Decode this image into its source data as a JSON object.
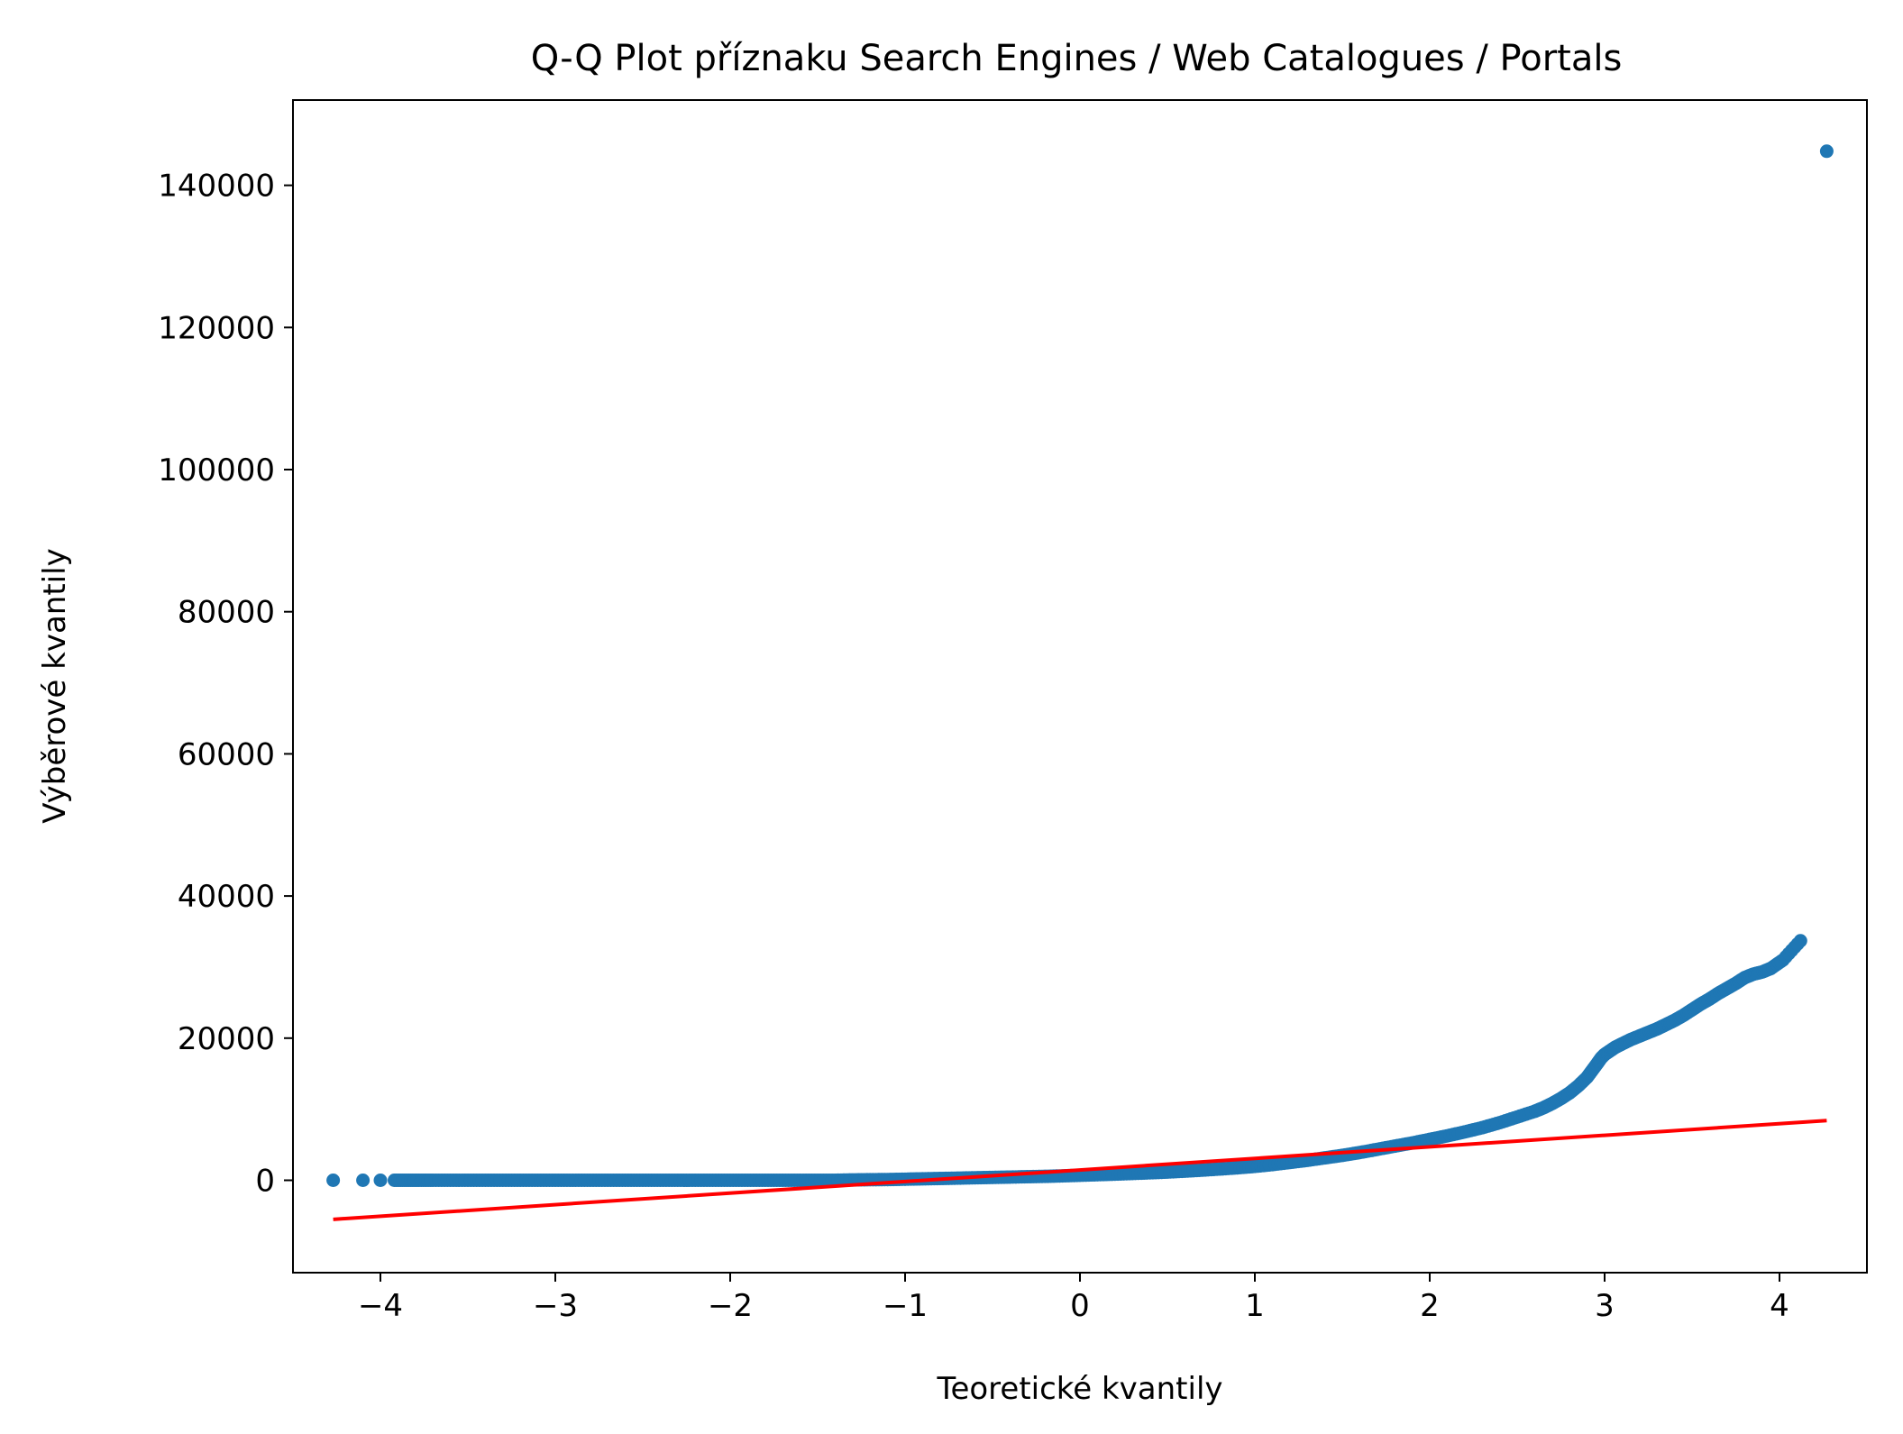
{
  "chart_data": {
    "type": "scatter",
    "title": "Q-Q Plot příznaku Search Engines / Web Catalogues / Portals",
    "xlabel": "Teoretické kvantily",
    "ylabel": "Výběrové kvantily",
    "xlim": [
      -4.5,
      4.5
    ],
    "ylim": [
      -13000,
      152000
    ],
    "x_ticks": [
      -4,
      -3,
      -2,
      -1,
      0,
      1,
      2,
      3,
      4
    ],
    "x_tick_labels": [
      "−4",
      "−3",
      "−2",
      "−1",
      "0",
      "1",
      "2",
      "3",
      "4"
    ],
    "y_ticks": [
      0,
      20000,
      40000,
      60000,
      80000,
      100000,
      120000,
      140000
    ],
    "y_tick_labels": [
      "0",
      "20000",
      "40000",
      "60000",
      "80000",
      "100000",
      "120000",
      "140000"
    ],
    "grid": false,
    "series": [
      {
        "kind": "points",
        "color": "#1f77b4",
        "x": [
          -4.27,
          -4.1,
          -4.0,
          -3.92,
          -3.85,
          -3.78,
          -3.7,
          -3.6,
          -3.5,
          -3.4,
          -3.3,
          -3.2,
          -3.1,
          -3.0,
          -2.9,
          -2.8,
          -2.7,
          -2.6,
          -2.5,
          -2.4,
          -2.3,
          -2.2,
          -2.1,
          -2.0,
          -1.9,
          -1.8,
          -1.7,
          -1.6,
          -1.5,
          -1.4,
          -1.3,
          -1.2,
          -1.1,
          -1.0,
          -0.9,
          -0.8,
          -0.7,
          -0.6,
          -0.5,
          -0.4,
          -0.3,
          -0.2,
          -0.1,
          0.0,
          0.1,
          0.2,
          0.3,
          0.4,
          0.5,
          0.6,
          0.7,
          0.8,
          0.9,
          1.0,
          1.1,
          1.2,
          1.3,
          1.4,
          1.5,
          1.6,
          1.7,
          1.8,
          1.9,
          2.0,
          2.1,
          2.2,
          2.3,
          2.4,
          2.5,
          2.6,
          2.65,
          2.7,
          2.75,
          2.8,
          2.85,
          2.9,
          2.93,
          2.96,
          2.98,
          3.0,
          3.03,
          3.06,
          3.1,
          3.15,
          3.2,
          3.25,
          3.3,
          3.35,
          3.4,
          3.45,
          3.5,
          3.55,
          3.6,
          3.65,
          3.7,
          3.75,
          3.8,
          3.85,
          3.9,
          3.95,
          4.02,
          4.12,
          4.27
        ],
        "y": [
          0,
          0,
          0,
          0,
          0,
          0,
          0,
          0,
          0,
          0,
          0,
          0,
          0,
          0,
          0,
          0,
          0,
          0,
          0,
          0,
          0,
          0,
          0,
          0,
          0,
          0,
          0,
          0,
          0,
          0,
          50,
          80,
          100,
          150,
          200,
          250,
          300,
          350,
          400,
          450,
          500,
          550,
          620,
          700,
          780,
          860,
          950,
          1050,
          1150,
          1280,
          1420,
          1580,
          1750,
          1950,
          2200,
          2500,
          2800,
          3150,
          3500,
          3900,
          4350,
          4800,
          5250,
          5750,
          6250,
          6800,
          7400,
          8100,
          8900,
          9700,
          10200,
          10800,
          11500,
          12300,
          13300,
          14500,
          15500,
          16500,
          17200,
          17700,
          18200,
          18700,
          19200,
          19800,
          20300,
          20800,
          21300,
          21900,
          22500,
          23200,
          24000,
          24800,
          25500,
          26300,
          27000,
          27700,
          28500,
          29000,
          29300,
          29800,
          31000,
          33700,
          144800
        ]
      },
      {
        "kind": "fit-line",
        "color": "#ff0000",
        "x": [
          -4.27,
          4.27
        ],
        "y": [
          -5500,
          8400
        ]
      }
    ]
  }
}
